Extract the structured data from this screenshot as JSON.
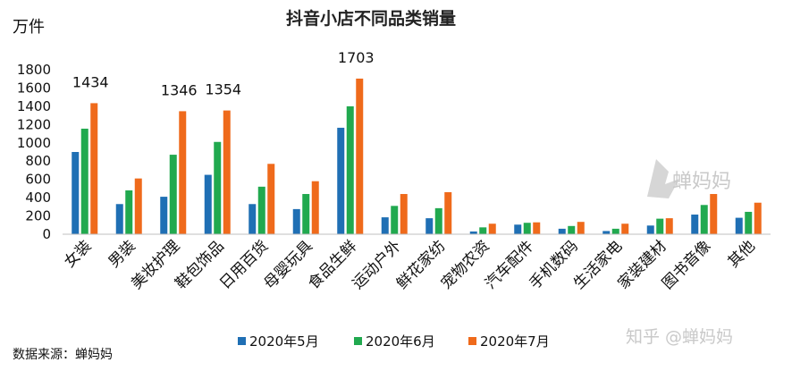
{
  "chart_data": {
    "type": "bar",
    "title": "抖音小店不同品类销量",
    "ylabel": "万件",
    "ylim": [
      0,
      1800
    ],
    "yticks": [
      0,
      200,
      400,
      600,
      800,
      1000,
      1200,
      1400,
      1600,
      1800
    ],
    "categories": [
      "女装",
      "男装",
      "美妆护理",
      "鞋包饰品",
      "日用百货",
      "母婴玩具",
      "食品生鲜",
      "运动户外",
      "鲜花家纺",
      "宠物农资",
      "汽车配件",
      "手机数码",
      "生活家电",
      "家装建材",
      "图书音像",
      "其他"
    ],
    "series": [
      {
        "name": "2020年5月",
        "color": "#1f6fb4",
        "values": [
          900,
          330,
          410,
          650,
          330,
          275,
          1165,
          185,
          175,
          30,
          105,
          60,
          35,
          95,
          215,
          180
        ]
      },
      {
        "name": "2020年6月",
        "color": "#21a94f",
        "values": [
          1155,
          480,
          870,
          1010,
          520,
          440,
          1400,
          310,
          285,
          75,
          125,
          90,
          60,
          170,
          320,
          245
        ]
      },
      {
        "name": "2020年7月",
        "color": "#ef6a1b",
        "values": [
          1434,
          610,
          1346,
          1354,
          770,
          580,
          1703,
          440,
          460,
          115,
          130,
          135,
          115,
          175,
          440,
          345
        ]
      }
    ],
    "data_labels": [
      {
        "category_index": 0,
        "series_index": 2,
        "text": "1434"
      },
      {
        "category_index": 2,
        "series_index": 2,
        "text": "1346"
      },
      {
        "category_index": 3,
        "series_index": 2,
        "text": "1354"
      },
      {
        "category_index": 6,
        "series_index": 2,
        "text": "1703"
      }
    ],
    "grid": false,
    "legend": "bottom"
  },
  "source_text": "数据来源：蝉妈妈",
  "watermarks": [
    "蝉妈妈",
    "知乎 @蝉妈妈"
  ]
}
